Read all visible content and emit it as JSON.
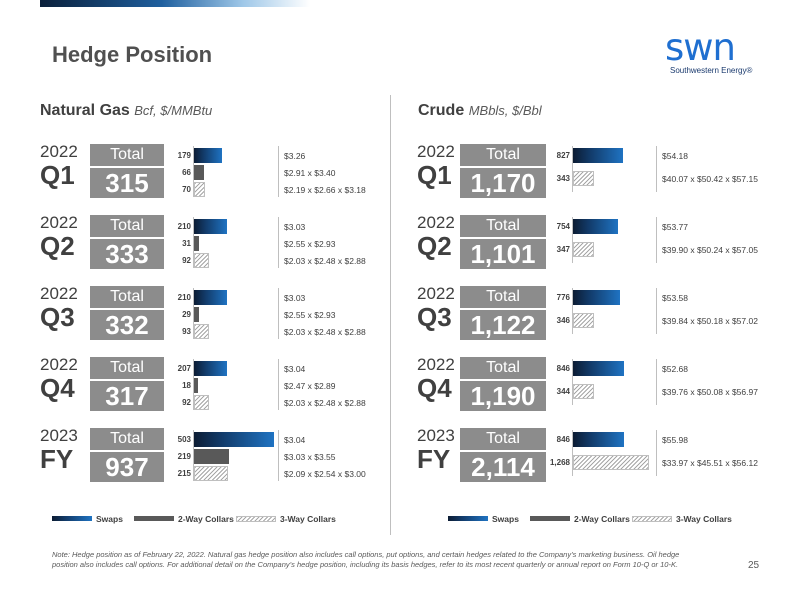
{
  "page": {
    "title": "Hedge Position",
    "page_number": "25"
  },
  "logo": {
    "word": "swn",
    "tagline": "Southwestern Energy®",
    "color": "#1f6fd0"
  },
  "colors": {
    "swap": "#1f73c2",
    "two_way": "#595959",
    "three_way": "#a6a6a6",
    "total_box": "#8c8c8c"
  },
  "gas": {
    "title": "Natural Gas",
    "unit": "Bcf, $/MMBtu",
    "periods": [
      {
        "year": "2022",
        "label": "Q1",
        "total_label": "Total",
        "total": "315",
        "rows": [
          {
            "type": "swap",
            "volume": "179",
            "value": 179,
            "price": "$3.26"
          },
          {
            "type": "2way",
            "volume": "66",
            "value": 66,
            "price": "$2.91 x $3.40"
          },
          {
            "type": "3way",
            "volume": "70",
            "value": 70,
            "price": "$2.19 x $2.66 x $3.18"
          }
        ]
      },
      {
        "year": "2022",
        "label": "Q2",
        "total_label": "Total",
        "total": "333",
        "rows": [
          {
            "type": "swap",
            "volume": "210",
            "value": 210,
            "price": "$3.03"
          },
          {
            "type": "2way",
            "volume": "31",
            "value": 31,
            "price": "$2.55 x $2.93"
          },
          {
            "type": "3way",
            "volume": "92",
            "value": 92,
            "price": "$2.03 x $2.48 x $2.88"
          }
        ]
      },
      {
        "year": "2022",
        "label": "Q3",
        "total_label": "Total",
        "total": "332",
        "rows": [
          {
            "type": "swap",
            "volume": "210",
            "value": 210,
            "price": "$3.03"
          },
          {
            "type": "2way",
            "volume": "29",
            "value": 29,
            "price": "$2.55 x $2.93"
          },
          {
            "type": "3way",
            "volume": "93",
            "value": 93,
            "price": "$2.03 x $2.48 x $2.88"
          }
        ]
      },
      {
        "year": "2022",
        "label": "Q4",
        "total_label": "Total",
        "total": "317",
        "rows": [
          {
            "type": "swap",
            "volume": "207",
            "value": 207,
            "price": "$3.04"
          },
          {
            "type": "2way",
            "volume": "18",
            "value": 18,
            "price": "$2.47 x $2.89"
          },
          {
            "type": "3way",
            "volume": "92",
            "value": 92,
            "price": "$2.03 x $2.48 x $2.88"
          }
        ]
      },
      {
        "year": "2023",
        "label": "FY",
        "total_label": "Total",
        "total": "937",
        "rows": [
          {
            "type": "swap",
            "volume": "503",
            "value": 503,
            "price": "$3.04"
          },
          {
            "type": "2way",
            "volume": "219",
            "value": 219,
            "price": "$3.03 x $3.55"
          },
          {
            "type": "3way",
            "volume": "215",
            "value": 215,
            "price": "$2.09 x $2.54 x $3.00"
          }
        ]
      }
    ],
    "legend": [
      "Swaps",
      "2-Way Collars",
      "3-Way Collars"
    ]
  },
  "crude": {
    "title": "Crude",
    "unit": "MBbls, $/Bbl",
    "periods": [
      {
        "year": "2022",
        "label": "Q1",
        "total_label": "Total",
        "total": "1,170",
        "rows": [
          {
            "type": "swap",
            "volume": "827",
            "value": 827,
            "price": "$54.18"
          },
          {
            "type": "3way",
            "volume": "343",
            "value": 343,
            "price": "$40.07 x $50.42 x $57.15"
          }
        ]
      },
      {
        "year": "2022",
        "label": "Q2",
        "total_label": "Total",
        "total": "1,101",
        "rows": [
          {
            "type": "swap",
            "volume": "754",
            "value": 754,
            "price": "$53.77"
          },
          {
            "type": "3way",
            "volume": "347",
            "value": 347,
            "price": "$39.90 x $50.24 x $57.05"
          }
        ]
      },
      {
        "year": "2022",
        "label": "Q3",
        "total_label": "Total",
        "total": "1,122",
        "rows": [
          {
            "type": "swap",
            "volume": "776",
            "value": 776,
            "price": "$53.58"
          },
          {
            "type": "3way",
            "volume": "346",
            "value": 346,
            "price": "$39.84 x $50.18 x $57.02"
          }
        ]
      },
      {
        "year": "2022",
        "label": "Q4",
        "total_label": "Total",
        "total": "1,190",
        "rows": [
          {
            "type": "swap",
            "volume": "846",
            "value": 846,
            "price": "$52.68"
          },
          {
            "type": "3way",
            "volume": "344",
            "value": 344,
            "price": "$39.76 x $50.08 x $56.97"
          }
        ]
      },
      {
        "year": "2023",
        "label": "FY",
        "total_label": "Total",
        "total": "2,114",
        "rows": [
          {
            "type": "swap",
            "volume": "846",
            "value": 846,
            "price": "$55.98"
          },
          {
            "type": "3way",
            "volume": "1,268",
            "value": 1268,
            "price": "$33.97 x $45.51 x $56.12"
          }
        ]
      }
    ],
    "legend": [
      "Swaps",
      "2-Way Collars",
      "3-Way Collars"
    ]
  },
  "footnote": "Note: Hedge position as of February 22, 2022. Natural gas hedge position also includes call options, put options, and certain hedges related to the Company’s marketing business. Oil hedge position also includes call options. For additional detail on the Company’s hedge position, including its basis hedges, refer to its most recent quarterly or annual report on Form 10-Q or 10-K."
}
